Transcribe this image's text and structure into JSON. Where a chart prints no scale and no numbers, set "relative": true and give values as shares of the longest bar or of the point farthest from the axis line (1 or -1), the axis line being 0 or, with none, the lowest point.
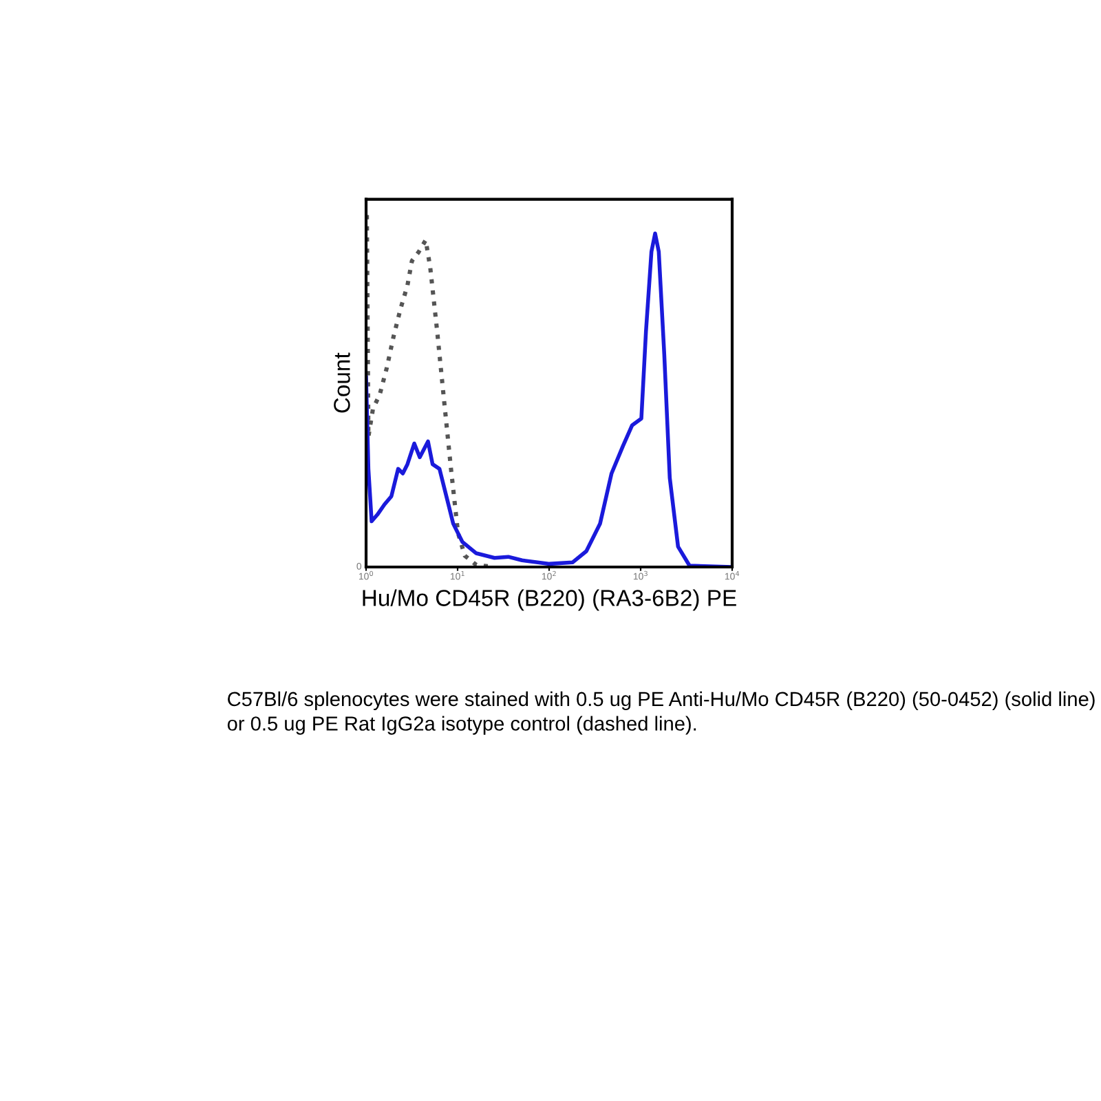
{
  "chart_data": {
    "type": "line",
    "relative": true,
    "log": "x",
    "xlabel": "Hu/Mo CD45R (B220) (RA3-6B2) PE",
    "ylabel": "Count",
    "xlim": [
      1,
      10000
    ],
    "xticks": [
      {
        "value": 1,
        "label": "10$^{0}$"
      },
      {
        "value": 10,
        "label": "10$^{1}$"
      },
      {
        "value": 100,
        "label": "10$^{2}$"
      },
      {
        "value": 1000,
        "label": "10$^{3}$"
      },
      {
        "value": 10000,
        "label": "10$^{4}$"
      }
    ],
    "grid": false,
    "legend": false,
    "marker": "none",
    "series": [
      {
        "color": "#555555",
        "line_style": "dotted",
        "x": [
          1.02,
          1.06,
          1.19,
          1.41,
          1.68,
          2.0,
          2.38,
          2.83,
          3.17,
          3.77,
          4.48,
          5.03,
          5.98,
          7.11,
          8.46,
          10.1,
          12.0,
          16.0,
          25.3
        ],
        "values": [
          1.0,
          0.37,
          0.45,
          0.49,
          0.565,
          0.656,
          0.734,
          0.8,
          0.87,
          0.896,
          0.929,
          0.85,
          0.67,
          0.474,
          0.28,
          0.097,
          0.032,
          0.006,
          0
        ]
      },
      {
        "color": "#1a1adb",
        "line_style": "solid",
        "x": [
          1.0,
          1.06,
          1.15,
          1.33,
          1.59,
          1.89,
          2.24,
          2.52,
          2.83,
          3.36,
          3.86,
          4.75,
          5.33,
          6.34,
          7.54,
          8.96,
          11.3,
          16.0,
          25.3,
          35.8,
          50.6,
          101,
          180,
          255,
          360,
          481,
          641,
          808,
          1018,
          1143,
          1312,
          1439,
          1578,
          1812,
          2081,
          2563,
          3420,
          10000
        ],
        "values": [
          0.539,
          0.279,
          0.13,
          0.149,
          0.178,
          0.201,
          0.279,
          0.266,
          0.292,
          0.351,
          0.312,
          0.357,
          0.292,
          0.279,
          0.201,
          0.123,
          0.071,
          0.039,
          0.026,
          0.029,
          0.019,
          0.009,
          0.013,
          0.045,
          0.123,
          0.266,
          0.344,
          0.403,
          0.422,
          0.669,
          0.896,
          0.948,
          0.896,
          0.604,
          0.253,
          0.058,
          0.004,
          0
        ]
      }
    ],
    "annotations": [
      "0",
      "C57Bl/6 splenocytes were stained with 0.5 ug PE Anti-Hu/Mo CD45R (B220) (50-0452) (solid line) or 0.5 ug PE Rat IgG2a isotype control (dashed line)."
    ]
  }
}
